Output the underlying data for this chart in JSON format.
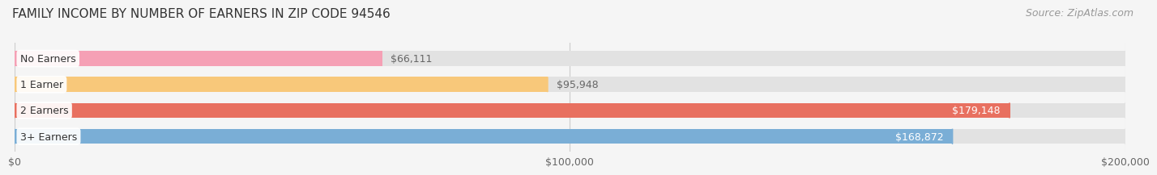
{
  "title": "FAMILY INCOME BY NUMBER OF EARNERS IN ZIP CODE 94546",
  "source": "Source: ZipAtlas.com",
  "categories": [
    "No Earners",
    "1 Earner",
    "2 Earners",
    "3+ Earners"
  ],
  "values": [
    66111,
    95948,
    179148,
    168872
  ],
  "bar_colors": [
    "#f5a0b5",
    "#f8c87a",
    "#e87060",
    "#7aaed6"
  ],
  "label_colors": [
    "#888888",
    "#888888",
    "#ffffff",
    "#ffffff"
  ],
  "value_labels": [
    "$66,111",
    "$95,948",
    "$179,148",
    "$168,872"
  ],
  "value_outside": [
    true,
    true,
    false,
    false
  ],
  "xlim_max": 200000,
  "xticks": [
    0,
    100000,
    200000
  ],
  "xtick_labels": [
    "$0",
    "$100,000",
    "$200,000"
  ],
  "background_color": "#f5f5f5",
  "bar_bg_color": "#e2e2e2",
  "title_fontsize": 11,
  "source_fontsize": 9,
  "tick_fontsize": 9,
  "value_fontsize": 9,
  "label_fontsize": 9
}
